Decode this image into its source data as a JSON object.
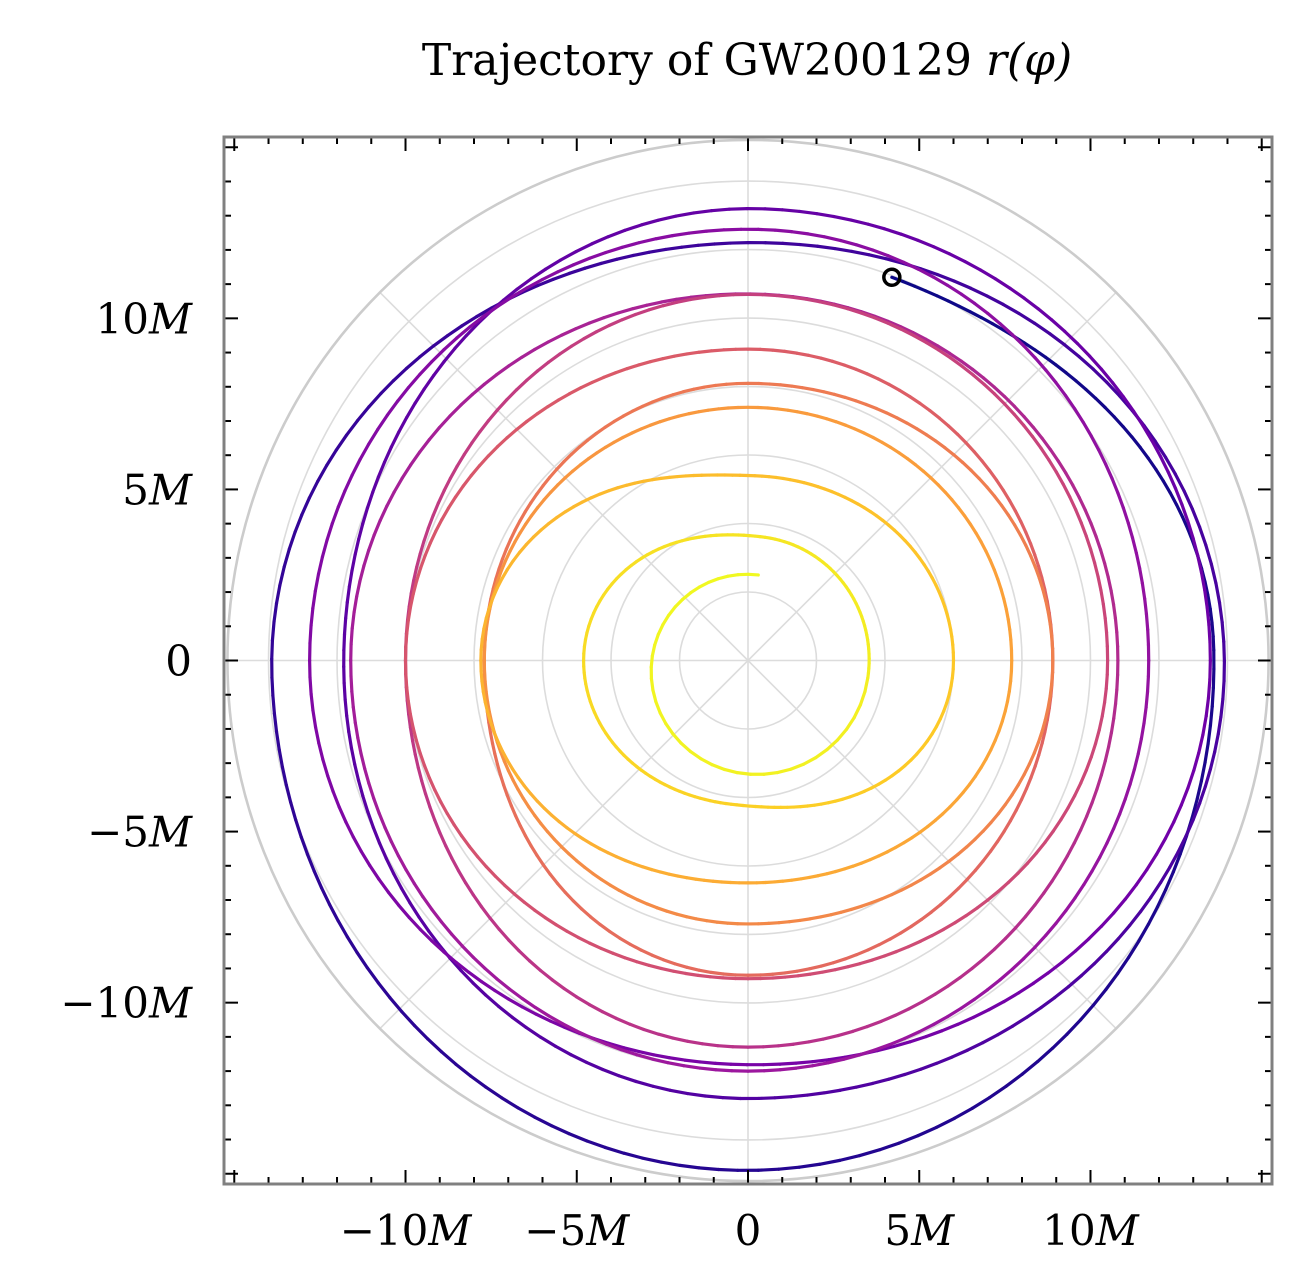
{
  "chart_data": {
    "type": "line",
    "subtype": "polar-trajectory",
    "title": "Trajectory of GW200129 r(φ)",
    "title_parts": {
      "text": "Trajectory of GW200129 ",
      "math": "r(φ)"
    },
    "xlabel": "",
    "ylabel": "",
    "xlim": [
      -15.3,
      15.3
    ],
    "ylim": [
      -15.3,
      15.3
    ],
    "units": "M",
    "x_ticks": [
      {
        "value": -10,
        "label": "−10M"
      },
      {
        "value": -5,
        "label": "−5M"
      },
      {
        "value": 0,
        "label": "0"
      },
      {
        "value": 5,
        "label": "5M"
      },
      {
        "value": 10,
        "label": "10M"
      }
    ],
    "y_ticks": [
      {
        "value": 10,
        "label": "10M"
      },
      {
        "value": 5,
        "label": "5M"
      },
      {
        "value": 0,
        "label": "0"
      },
      {
        "value": -5,
        "label": "−5M"
      },
      {
        "value": -10,
        "label": "−10M"
      }
    ],
    "minor_tick_step": 1,
    "grid": true,
    "polar_grid": {
      "radii": [
        2,
        4,
        6,
        8,
        10,
        12,
        14
      ],
      "outer_radius": 15.2,
      "angles_deg": [
        0,
        45,
        90,
        135,
        180,
        225,
        270,
        315
      ]
    },
    "colormap": "plasma",
    "colormap_stops": [
      "#0d0887",
      "#46039f",
      "#7201a8",
      "#9c179e",
      "#bd3786",
      "#d8576b",
      "#ed7953",
      "#fb9f3a",
      "#fdca26",
      "#f0f921"
    ],
    "direction": "clockwise",
    "start_marker": {
      "x": 4.2,
      "y": 11.2,
      "style": "open-circle"
    },
    "anchors_comment": "trajectory anchor points (x, y in M) in order along the path, clockwise quarter-turns",
    "anchors": [
      [
        4.2,
        11.2
      ],
      [
        13.6,
        0.3
      ],
      [
        -0.3,
        -14.9
      ],
      [
        -13.9,
        -0.5
      ],
      [
        -0.5,
        12.2
      ],
      [
        13.9,
        -0.6
      ],
      [
        0.3,
        -12.8
      ],
      [
        -11.8,
        0.3
      ],
      [
        0.5,
        13.2
      ],
      [
        13.5,
        0.0
      ],
      [
        -0.5,
        -11.8
      ],
      [
        -12.8,
        0.0
      ],
      [
        0.3,
        12.6
      ],
      [
        11.7,
        0.0
      ],
      [
        0.0,
        -12.0
      ],
      [
        -11.6,
        0.0
      ],
      [
        0.5,
        10.7
      ],
      [
        10.8,
        0.0
      ],
      [
        0.0,
        -11.3
      ],
      [
        -10.0,
        0.0
      ],
      [
        0.0,
        10.7
      ],
      [
        10.5,
        0.0
      ],
      [
        0.0,
        -9.3
      ],
      [
        -10.0,
        0.0
      ],
      [
        0.0,
        9.1
      ],
      [
        8.9,
        0.0
      ],
      [
        0.0,
        -9.2
      ],
      [
        -7.7,
        0.0
      ],
      [
        0.0,
        8.1
      ],
      [
        8.9,
        0.0
      ],
      [
        0.0,
        -7.7
      ],
      [
        -7.7,
        0.0
      ],
      [
        0.0,
        7.4
      ],
      [
        7.7,
        0.0
      ],
      [
        0.0,
        -6.5
      ],
      [
        -7.8,
        0.0
      ],
      [
        0.2,
        5.4
      ],
      [
        6.0,
        0.0
      ],
      [
        -0.5,
        -4.2
      ],
      [
        -4.8,
        0.0
      ],
      [
        0.5,
        3.6
      ],
      [
        3.5,
        -0.5
      ],
      [
        0.3,
        2.5
      ]
    ]
  }
}
